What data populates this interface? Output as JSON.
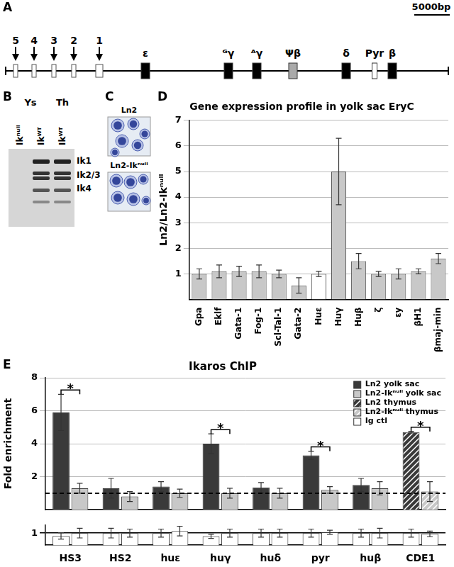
{
  "panels": [
    "A",
    "B",
    "C",
    "D",
    "E"
  ],
  "map": {
    "scale_bar": "5000bp",
    "sites": [
      "5",
      "4",
      "3",
      "2",
      "1"
    ],
    "genes": [
      "ε",
      "ᴳγ",
      "ᴬγ",
      "Ψβ",
      "δ",
      "Pyr",
      "β"
    ]
  },
  "gel": {
    "groups": [
      {
        "label": "Ys",
        "lanes": [
          "Ikⁿᵘˡˡ",
          "Ikᵂᵀ"
        ]
      },
      {
        "label": "Th",
        "lanes": [
          "Ikᵂᵀ"
        ]
      }
    ],
    "bands": [
      "Ik1",
      "Ik2/3",
      "Ik4"
    ]
  },
  "micrographs": [
    "Ln2",
    "Ln2-Ikⁿᵘˡˡ"
  ],
  "chart_data": [
    {
      "type": "bar",
      "title": "Gene expression profile in yolk sac EryC",
      "y_label": "Ln2/Ln2-Ikⁿᵘˡˡ",
      "categories": [
        "Gpa",
        "Eklf",
        "Gata-1",
        "Fog-1",
        "Scl-Tal-1",
        "Gata-2",
        "Huε",
        "Huγ",
        "Huβ",
        "ζ",
        "εy",
        "βH1",
        "βmaj-min"
      ],
      "values": [
        1.0,
        1.1,
        1.1,
        1.1,
        1.0,
        0.55,
        1.0,
        5.0,
        1.5,
        1.0,
        1.0,
        1.1,
        1.6
      ],
      "errors": [
        0.2,
        0.25,
        0.2,
        0.25,
        0.15,
        0.3,
        0.1,
        1.3,
        0.3,
        0.1,
        0.2,
        0.1,
        0.2
      ],
      "colors": [
        "#c8c8c8",
        "#c8c8c8",
        "#c8c8c8",
        "#c8c8c8",
        "#c8c8c8",
        "#c8c8c8",
        "#ffffff",
        "#c8c8c8",
        "#c8c8c8",
        "#c8c8c8",
        "#c8c8c8",
        "#c8c8c8",
        "#c8c8c8"
      ],
      "ylim": [
        0,
        7
      ],
      "yticks": [
        1,
        2,
        3,
        4,
        5,
        6,
        7
      ],
      "grid": true
    },
    {
      "type": "bar",
      "title": "Ikaros ChIP",
      "y_label": "Fold enrichment",
      "categories": [
        "HS3",
        "HS2",
        "huε",
        "huγ",
        "huδ",
        "pyr",
        "huβ",
        "CDE1"
      ],
      "series": [
        {
          "name": "Ln2 yolk sac",
          "color": "#3a3a3a",
          "values": [
            5.9,
            1.3,
            1.4,
            4.0,
            1.35,
            3.3,
            1.5,
            null
          ],
          "errors": [
            1.1,
            0.6,
            0.3,
            0.6,
            0.3,
            0.25,
            0.4,
            null
          ]
        },
        {
          "name": "Ln2-Ikⁿᵘˡˡ yolk sac",
          "color": "#c8c8c8",
          "values": [
            1.3,
            0.8,
            1.0,
            1.0,
            1.0,
            1.2,
            1.3,
            null
          ],
          "errors": [
            0.3,
            0.3,
            0.25,
            0.3,
            0.3,
            0.2,
            0.4,
            null
          ]
        },
        {
          "name": "Ln2 thymus",
          "color": "#3a3a3a",
          "values": [
            null,
            null,
            null,
            null,
            null,
            null,
            null,
            4.7
          ],
          "errors": [
            null,
            null,
            null,
            null,
            null,
            null,
            null,
            0.05
          ]
        },
        {
          "name": "Ln2-Ikⁿᵘˡˡ thymus",
          "color": "#c8c8c8",
          "values": [
            null,
            null,
            null,
            null,
            null,
            null,
            null,
            1.1
          ],
          "errors": [
            null,
            null,
            null,
            null,
            null,
            null,
            null,
            0.6
          ]
        }
      ],
      "baseline": 1,
      "annotations": [
        {
          "category": "HS3",
          "text": "*"
        },
        {
          "category": "huγ",
          "text": "*"
        },
        {
          "category": "pyr",
          "text": "*"
        },
        {
          "category": "CDE1",
          "text": "*"
        }
      ],
      "ylim": [
        0,
        8
      ],
      "yticks": [
        2,
        4,
        6,
        8
      ],
      "grid": true,
      "legend": "upper right",
      "tick_labels": "y"
    },
    {
      "type": "bar",
      "categories": [
        "HS3",
        "HS2",
        "huε",
        "huγ",
        "huδ",
        "pyr",
        "huβ",
        "CDE1"
      ],
      "series": [
        {
          "name": "Ig ctl",
          "color": "#ffffff",
          "values": [
            0.93,
            1.0,
            1.0,
            0.92,
            1.0,
            1.0,
            1.0,
            1.0
          ],
          "errors": [
            0.08,
            0.12,
            0.1,
            0.05,
            0.1,
            0.1,
            0.1,
            0.1
          ]
        },
        {
          "color": "#ffffff",
          "values": [
            1.0,
            1.0,
            1.05,
            1.0,
            1.0,
            1.02,
            1.0,
            0.98
          ],
          "errors": [
            0.12,
            0.1,
            0.12,
            0.1,
            0.1,
            0.05,
            0.12,
            0.07
          ]
        }
      ],
      "ylim": [
        0.7,
        1.2
      ],
      "yticks": [
        1
      ],
      "grid": true
    }
  ]
}
